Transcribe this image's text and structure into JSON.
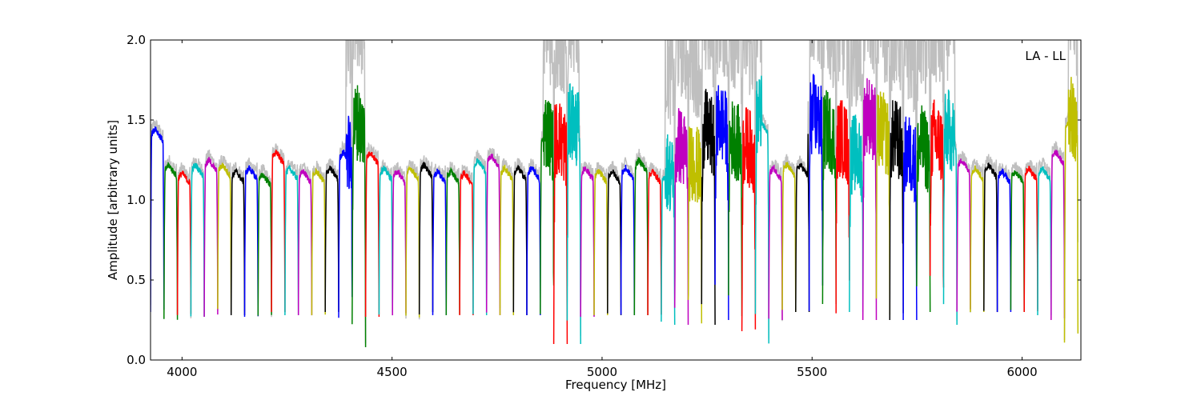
{
  "chart_data": {
    "type": "line",
    "title": "",
    "annotation": "LA - LL",
    "xlabel": "Frequency [MHz]",
    "ylabel": "Amplitude [arbitrary units]",
    "xlim": [
      3925,
      6140
    ],
    "ylim": [
      0.0,
      2.0
    ],
    "xticks": [
      4000,
      4500,
      5000,
      5500,
      6000
    ],
    "xtick_labels": [
      "4000",
      "4500",
      "5000",
      "5500",
      "6000"
    ],
    "yticks": [
      0.0,
      0.5,
      1.0,
      1.5,
      2.0
    ],
    "ytick_labels": [
      "0.0",
      "0.5",
      "1.0",
      "1.5",
      "2.0"
    ],
    "grid": false,
    "band_width_mhz": 32,
    "background_series_color": "#bfbfbf",
    "band_color_cycle": [
      "#0000ff",
      "#008000",
      "#ff0000",
      "#00bfbf",
      "#bf00bf",
      "#bfbf00",
      "#000000"
    ],
    "band_starts_mhz": [
      3925,
      3957,
      3989,
      4021,
      4053,
      4085,
      4117,
      4149,
      4181,
      4213,
      4245,
      4277,
      4309,
      4341,
      4373,
      4405,
      4437,
      4469,
      4501,
      4533,
      4565,
      4597,
      4629,
      4661,
      4693,
      4725,
      4757,
      4789,
      4821,
      4853,
      4885,
      4917,
      4949,
      4981,
      5013,
      5045,
      5077,
      5109,
      5141,
      5173,
      5205,
      5237,
      5269,
      5301,
      5333,
      5365,
      5397,
      5429,
      5461,
      5493,
      5525,
      5557,
      5589,
      5621,
      5653,
      5685,
      5717,
      5749,
      5781,
      5813,
      5845,
      5877,
      5909,
      5941,
      5973,
      6005,
      6037,
      6069,
      6101
    ],
    "band_peak_levels": [
      1.45,
      1.22,
      1.17,
      1.22,
      1.25,
      1.22,
      1.18,
      1.2,
      1.16,
      1.3,
      1.2,
      1.18,
      1.18,
      1.2,
      1.3,
      1.45,
      1.3,
      1.2,
      1.18,
      1.2,
      1.22,
      1.18,
      1.18,
      1.17,
      1.25,
      1.28,
      1.2,
      1.2,
      1.2,
      1.4,
      1.35,
      1.45,
      1.2,
      1.18,
      1.18,
      1.2,
      1.25,
      1.18,
      1.15,
      1.3,
      1.2,
      1.4,
      1.45,
      1.35,
      1.3,
      1.5,
      1.2,
      1.22,
      1.22,
      1.5,
      1.4,
      1.35,
      1.25,
      1.5,
      1.4,
      1.35,
      1.25,
      1.3,
      1.35,
      1.4,
      1.25,
      1.2,
      1.22,
      1.18,
      1.18,
      1.2,
      1.2,
      1.3,
      1.5
    ],
    "band_min_levels": [
      0.3,
      0.25,
      0.28,
      0.27,
      0.27,
      0.3,
      0.28,
      0.27,
      0.27,
      0.3,
      0.28,
      0.28,
      0.28,
      0.3,
      0.25,
      0.08,
      0.27,
      0.28,
      0.28,
      0.26,
      0.28,
      0.28,
      0.28,
      0.28,
      0.28,
      0.28,
      0.28,
      0.28,
      0.28,
      0.28,
      0.1,
      0.1,
      0.27,
      0.28,
      0.28,
      0.28,
      0.28,
      0.28,
      0.22,
      0.22,
      0.22,
      0.22,
      0.25,
      0.2,
      0.18,
      0.1,
      0.25,
      0.3,
      0.3,
      0.3,
      0.35,
      0.25,
      0.3,
      0.25,
      0.25,
      0.25,
      0.25,
      0.3,
      0.25,
      0.22,
      0.3,
      0.3,
      0.3,
      0.3,
      0.3,
      0.3,
      0.28,
      0.25,
      0.1
    ],
    "noisy_regions_mhz": [
      [
        4390,
        4435
      ],
      [
        4860,
        4945
      ],
      [
        5150,
        5380
      ],
      [
        5490,
        5840
      ],
      [
        6110,
        6140
      ]
    ]
  }
}
